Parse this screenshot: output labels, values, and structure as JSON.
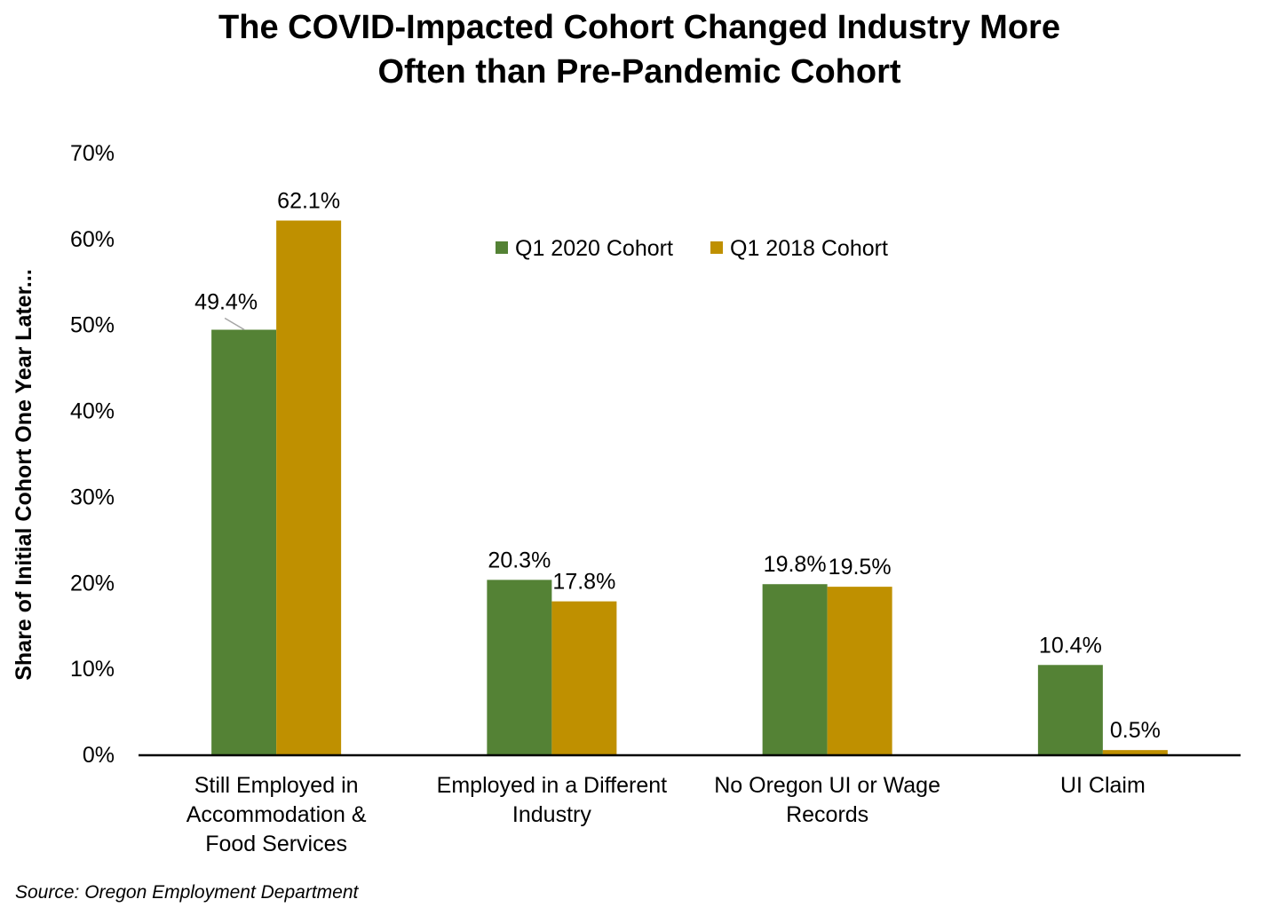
{
  "chart_data": {
    "type": "bar",
    "title_lines": [
      "The COVID-Impacted Cohort Changed Industry More",
      "Often than Pre-Pandemic Cohort"
    ],
    "ylabel": "Share of Initial Cohort One Year Later...",
    "xlabel": "",
    "ylim": [
      0,
      70
    ],
    "ytick_step": 10,
    "ytick_labels": [
      "0%",
      "10%",
      "20%",
      "30%",
      "40%",
      "50%",
      "60%",
      "70%"
    ],
    "categories": [
      [
        "Still Employed in",
        "Accommodation &",
        "Food Services"
      ],
      [
        "Employed in a Different",
        "Industry"
      ],
      [
        "No Oregon UI or Wage",
        "Records"
      ],
      [
        "UI Claim"
      ]
    ],
    "series": [
      {
        "name": "Q1 2020 Cohort",
        "color": "#548235",
        "values": [
          49.4,
          20.3,
          19.8,
          10.4
        ],
        "labels": [
          "49.4%",
          "20.3%",
          "19.8%",
          "10.4%"
        ]
      },
      {
        "name": "Q1 2018 Cohort",
        "color": "#BF9000",
        "values": [
          62.1,
          17.8,
          19.5,
          0.5
        ],
        "labels": [
          "62.1%",
          "17.8%",
          "19.5%",
          "0.5%"
        ]
      }
    ],
    "legend_position": "top-center",
    "grid": false
  },
  "source": "Source: Oregon Employment Department"
}
